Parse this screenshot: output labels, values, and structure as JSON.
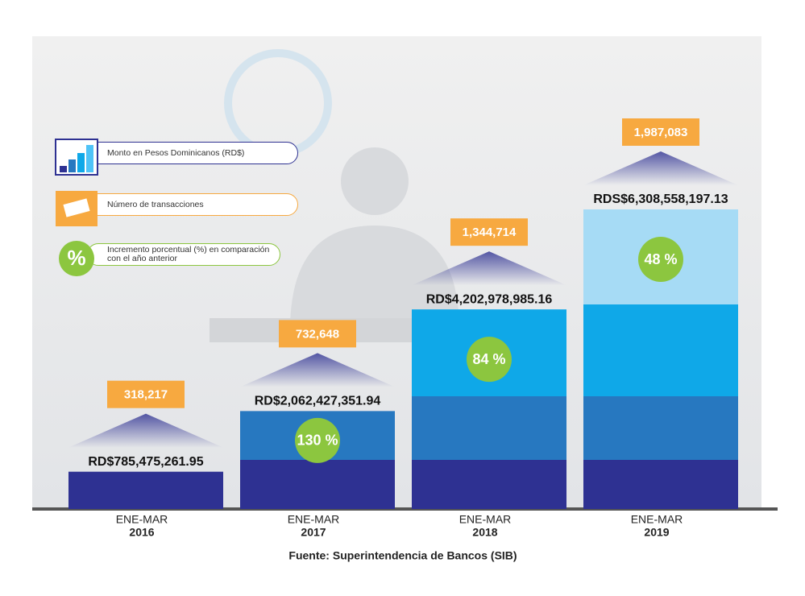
{
  "chart_data": {
    "type": "bar",
    "period": "ENE-MAR",
    "categories": [
      "2016",
      "2017",
      "2018",
      "2019"
    ],
    "series": [
      {
        "name": "Monto en Pesos Dominicanos (RD$)",
        "color": "#0fa8e8",
        "values": [
          785475261.95,
          2062427351.94,
          4202978985.16,
          6308558197.13
        ],
        "value_labels": [
          "RD$785,475,261.95",
          "RD$2,062,427,351.94",
          "RD$4,202,978,985.16",
          "RDS$6,308,558,197.13"
        ]
      },
      {
        "name": "Número de transacciones",
        "color": "#f7a940",
        "values": [
          318217,
          732648,
          1344714,
          1987083
        ],
        "value_labels": [
          "318,217",
          "732,648",
          "1,344,714",
          "1,987,083"
        ]
      },
      {
        "name": "Incremento porcentual (%) en comparación con el año anterior",
        "color": "#8cc63f",
        "values": [
          null,
          130,
          84,
          48
        ],
        "value_labels": [
          null,
          "130 %",
          "84 %",
          "48 %"
        ]
      }
    ],
    "percent_icon": "%",
    "source": "Fuente: Superintendencia de Bancos (SIB)"
  }
}
